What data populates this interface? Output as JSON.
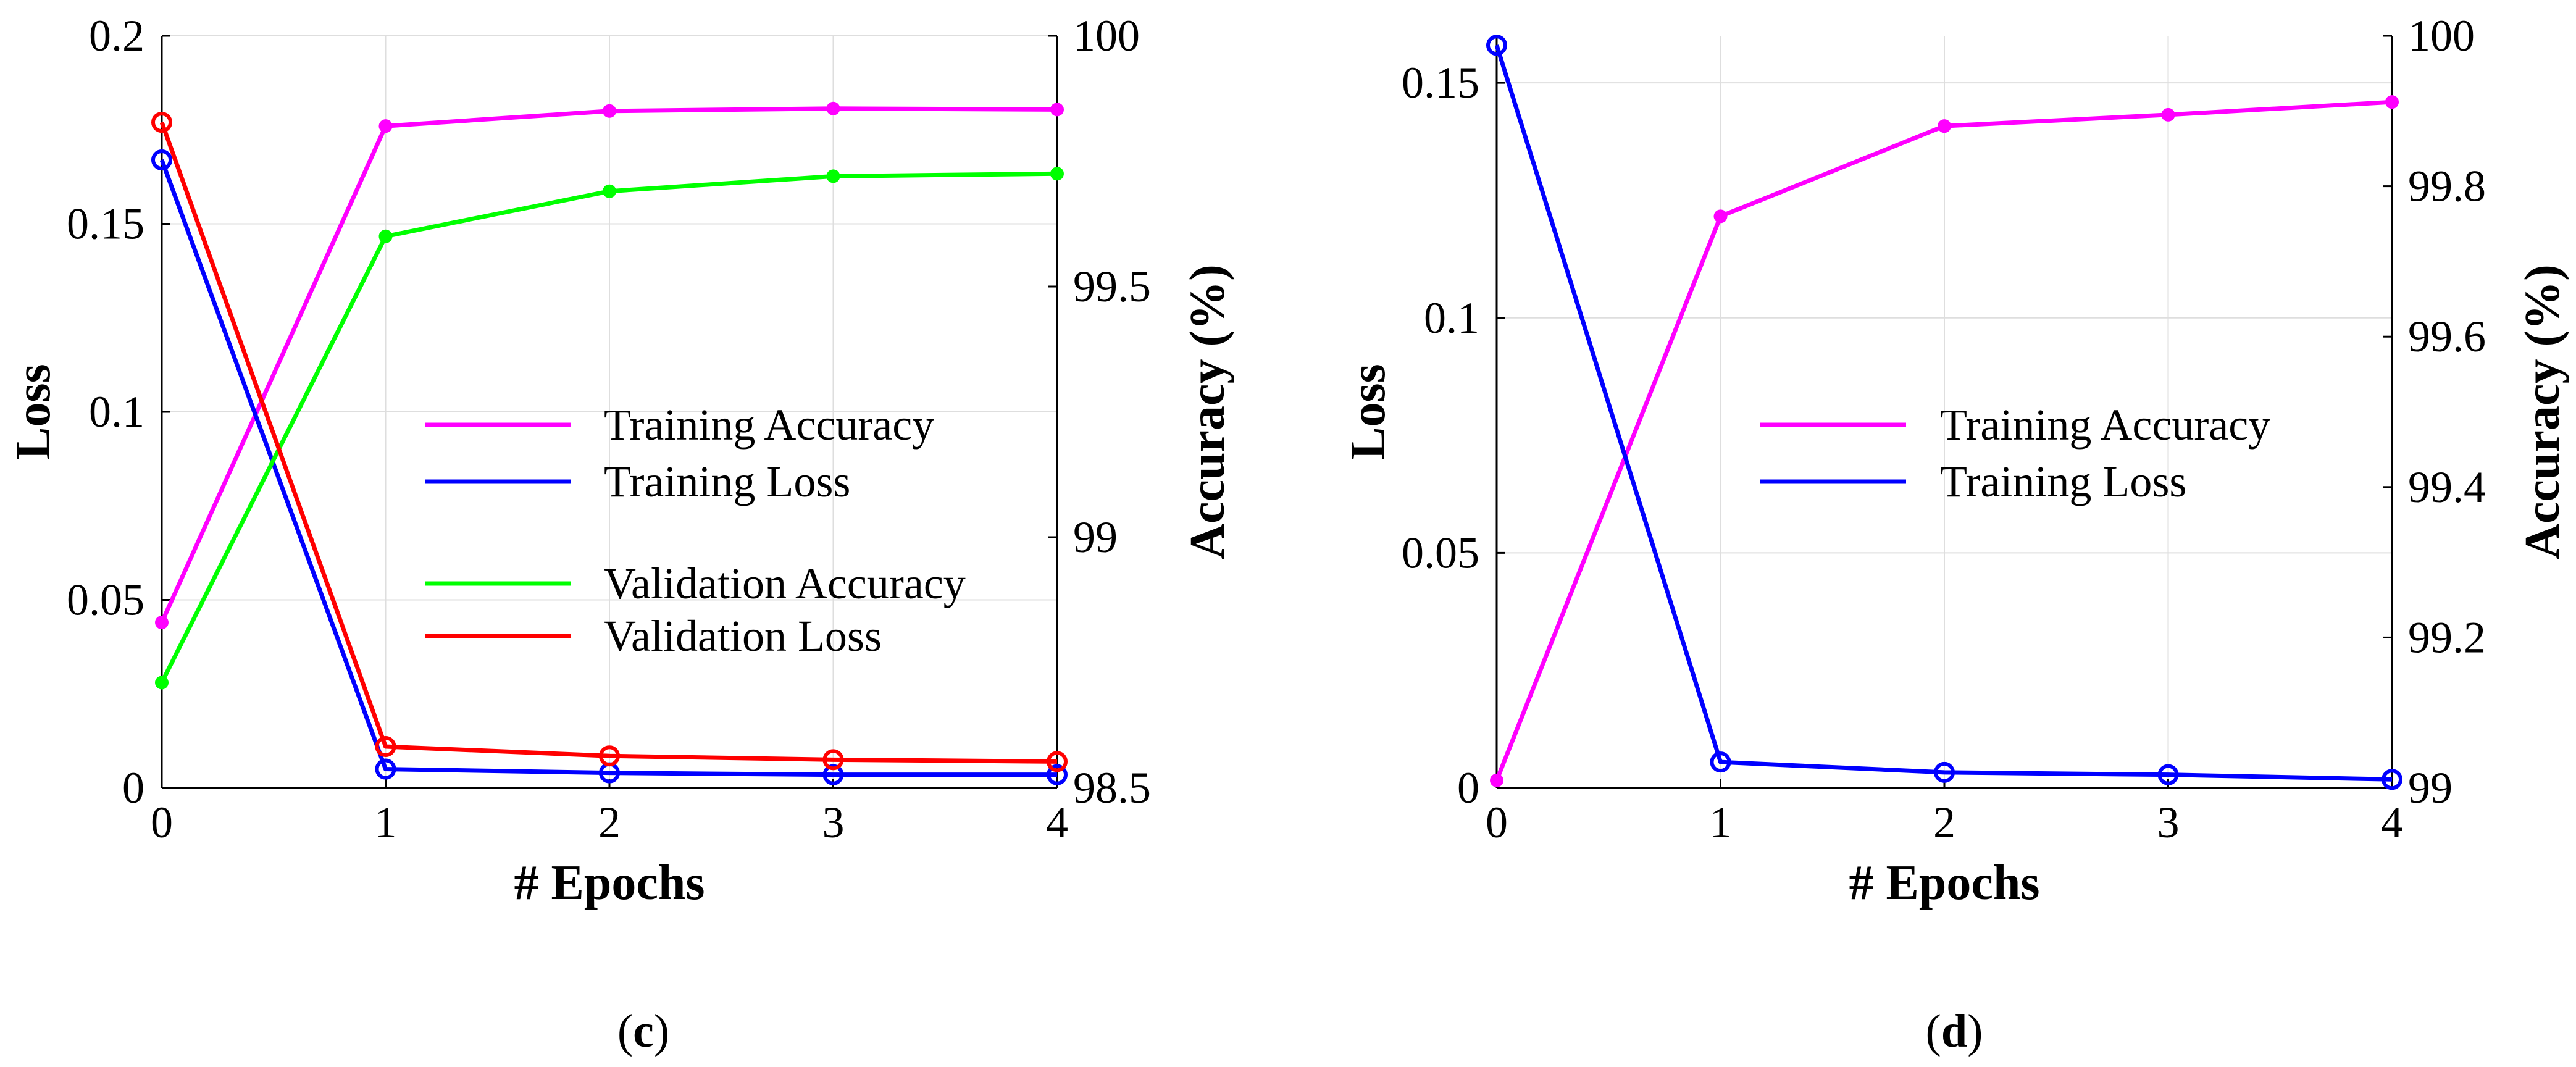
{
  "colors": {
    "training_accuracy": "#ff00ff",
    "training_loss": "#0000ff",
    "validation_accuracy": "#00ff00",
    "validation_loss": "#ff0000",
    "grid": "#dedede",
    "axis": "#000000"
  },
  "chart_data": [
    {
      "type": "line",
      "panel": "c",
      "panel_label": {
        "open": "(",
        "letter": "c",
        "close": ")"
      },
      "xlabel": "# Epochs",
      "ylabel_left": "Loss",
      "ylabel_right": "Accuracy (%)",
      "x": [
        0,
        1,
        2,
        3,
        4
      ],
      "xlim": [
        0,
        4
      ],
      "ylim_left": [
        0,
        0.2
      ],
      "ylim_right": [
        98.5,
        100
      ],
      "x_ticks": [
        "0",
        "1",
        "2",
        "3",
        "4"
      ],
      "y_ticks_left": [
        "0",
        "0.05",
        "0.1",
        "0.15",
        "0.2"
      ],
      "y_ticks_right": [
        "98.5",
        "99",
        "99.5",
        "100"
      ],
      "grid": true,
      "series": [
        {
          "name": "Training Accuracy",
          "axis": "right",
          "color_key": "training_accuracy",
          "marker": "dot",
          "values": [
            98.83,
            99.82,
            99.85,
            99.855,
            99.853
          ]
        },
        {
          "name": "Training Loss",
          "axis": "left",
          "color_key": "training_loss",
          "marker": "circle",
          "values": [
            0.167,
            0.005,
            0.004,
            0.0035,
            0.0035
          ]
        },
        {
          "name": "Validation Accuracy",
          "axis": "right",
          "color_key": "validation_accuracy",
          "marker": "dot",
          "values": [
            98.71,
            99.6,
            99.69,
            99.72,
            99.725
          ]
        },
        {
          "name": "Validation Loss",
          "axis": "left",
          "color_key": "validation_loss",
          "marker": "circle",
          "values": [
            0.177,
            0.011,
            0.0085,
            0.0075,
            0.007
          ]
        }
      ],
      "legend_groups": [
        [
          "Training Accuracy",
          "Training Loss"
        ],
        [
          "Validation Accuracy",
          "Validation Loss"
        ]
      ],
      "legend_position": "center-right"
    },
    {
      "type": "line",
      "panel": "d",
      "panel_label": {
        "open": "(",
        "letter": "d",
        "close": ")"
      },
      "xlabel": "# Epochs",
      "ylabel_left": "Loss",
      "ylabel_right": "Accuracy (%)",
      "x": [
        0,
        1,
        2,
        3,
        4
      ],
      "xlim": [
        0,
        4
      ],
      "ylim_left": [
        0,
        0.16
      ],
      "ylim_right": [
        99,
        100
      ],
      "x_ticks": [
        "0",
        "1",
        "2",
        "3",
        "4"
      ],
      "y_ticks_left": [
        "0",
        "0.05",
        "0.1",
        "0.15"
      ],
      "y_ticks_right": [
        "99",
        "99.2",
        "99.4",
        "99.6",
        "99.8",
        "100"
      ],
      "grid": true,
      "series": [
        {
          "name": "Training Accuracy",
          "axis": "right",
          "color_key": "training_accuracy",
          "marker": "dot",
          "values": [
            99.01,
            99.76,
            99.88,
            99.895,
            99.912
          ]
        },
        {
          "name": "Training Loss",
          "axis": "left",
          "color_key": "training_loss",
          "marker": "circle",
          "values": [
            0.158,
            0.0055,
            0.0033,
            0.0028,
            0.0018
          ]
        }
      ],
      "legend_groups": [
        [
          "Training Accuracy",
          "Training Loss"
        ]
      ],
      "legend_position": "center-right"
    }
  ]
}
